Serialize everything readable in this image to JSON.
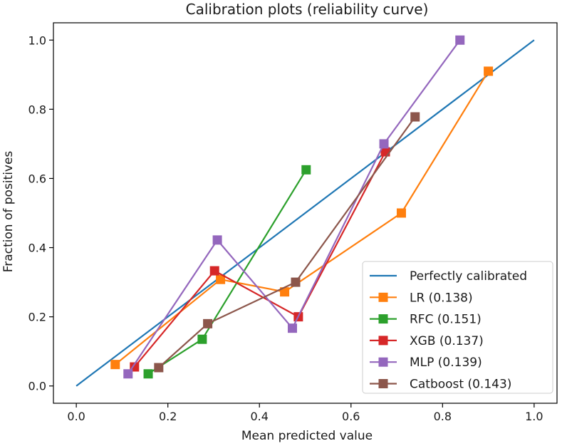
{
  "chart_data": {
    "type": "line",
    "title": "Calibration plots (reliability curve)",
    "xlabel": "Mean predicted value",
    "ylabel": "Fraction of positives",
    "xlim": [
      -0.05,
      1.05
    ],
    "ylim": [
      -0.05,
      1.05
    ],
    "xticks": [
      "0.0",
      "0.2",
      "0.4",
      "0.6",
      "0.8",
      "1.0"
    ],
    "yticks": [
      "0.0",
      "0.2",
      "0.4",
      "0.6",
      "0.8",
      "1.0"
    ],
    "legend_position": "lower-right",
    "series": [
      {
        "name": "Perfectly calibrated",
        "color": "#1f77b4",
        "marker": "none",
        "x": [
          0.0,
          1.0
        ],
        "y": [
          0.0,
          1.0
        ]
      },
      {
        "name": "LR (0.138)",
        "color": "#ff7f0e",
        "marker": "square",
        "x": [
          0.085,
          0.315,
          0.455,
          0.71,
          0.9
        ],
        "y": [
          0.062,
          0.308,
          0.272,
          0.5,
          0.91
        ]
      },
      {
        "name": "RFC (0.151)",
        "color": "#2ca02c",
        "marker": "square",
        "x": [
          0.157,
          0.275,
          0.502
        ],
        "y": [
          0.035,
          0.135,
          0.625
        ]
      },
      {
        "name": "XGB (0.137)",
        "color": "#d62728",
        "marker": "square",
        "x": [
          0.127,
          0.302,
          0.485,
          0.675
        ],
        "y": [
          0.055,
          0.333,
          0.2,
          0.677
        ]
      },
      {
        "name": "MLP (0.139)",
        "color": "#9467bd",
        "marker": "square",
        "x": [
          0.113,
          0.308,
          0.472,
          0.672,
          0.838
        ],
        "y": [
          0.035,
          0.422,
          0.167,
          0.7,
          1.0
        ]
      },
      {
        "name": "Catboost (0.143)",
        "color": "#8c564b",
        "marker": "square",
        "x": [
          0.18,
          0.287,
          0.479,
          0.74
        ],
        "y": [
          0.053,
          0.18,
          0.3,
          0.778
        ]
      }
    ]
  }
}
